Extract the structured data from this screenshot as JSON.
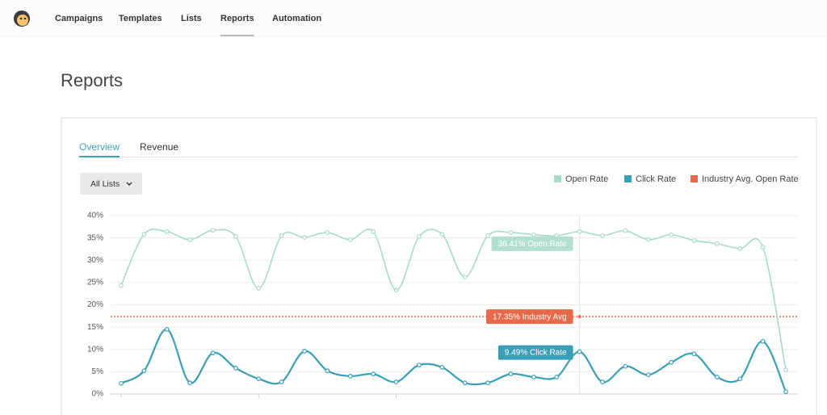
{
  "nav": {
    "items": [
      "Campaigns",
      "Templates",
      "Lists",
      "Reports",
      "Automation"
    ],
    "active": 3
  },
  "page_title": "Reports",
  "tabs": {
    "items": [
      "Overview",
      "Revenue"
    ],
    "active": 0
  },
  "dropdown": "All Lists",
  "chart_data": {
    "type": "line",
    "categories": [
      null,
      null,
      null,
      null,
      null,
      null,
      null,
      null,
      null,
      null,
      null,
      null,
      null,
      null,
      null,
      null,
      null,
      null,
      null,
      null,
      null,
      null,
      null,
      null,
      null,
      null,
      null,
      null,
      null,
      null
    ],
    "series": [
      {
        "name": "Open Rate",
        "color": "#a8dac9",
        "values": [
          24.3,
          35.8,
          36.4,
          34.6,
          36.7,
          35.3,
          23.7,
          35.5,
          35.1,
          36.2,
          34.6,
          36.4,
          23.3,
          35.3,
          35.8,
          26.2,
          35.5,
          36.2,
          35.7,
          35.5,
          36.41,
          35.5,
          36.6,
          34.6,
          35.7,
          34.4,
          33.7,
          32.6,
          32.9,
          5.4
        ]
      },
      {
        "name": "Click Rate",
        "color": "#3a9fb6",
        "values": [
          2.4,
          5.2,
          14.5,
          2.5,
          9.2,
          5.8,
          3.4,
          2.7,
          9.6,
          5.2,
          4.0,
          4.5,
          2.7,
          6.5,
          6.0,
          2.5,
          2.5,
          4.5,
          3.8,
          3.8,
          9.49,
          2.7,
          6.2,
          4.3,
          7.1,
          9.0,
          3.8,
          3.4,
          11.8,
          0.5
        ]
      }
    ],
    "industry_avg": {
      "name": "Industry Avg. Open Rate",
      "color": "#e8694a",
      "value": 17.35
    },
    "ylim": [
      0,
      40
    ],
    "yticks": [
      {
        "value": 0,
        "label": "0%"
      },
      {
        "value": 5,
        "label": "5%"
      },
      {
        "value": 10,
        "label": "10%"
      },
      {
        "value": 15,
        "label": "15%"
      },
      {
        "value": 20,
        "label": "20%"
      },
      {
        "value": 25,
        "label": "25%"
      },
      {
        "value": 30,
        "label": "30%"
      },
      {
        "value": 35,
        "label": "35%"
      },
      {
        "value": 40,
        "label": "40%"
      }
    ],
    "grid": true,
    "legend": "top-right",
    "hover_index": 20,
    "tooltips": {
      "open": "36.41% Open Rate",
      "industry": "17.35% Industry Avg",
      "click": "9.49% Click Rate"
    }
  }
}
